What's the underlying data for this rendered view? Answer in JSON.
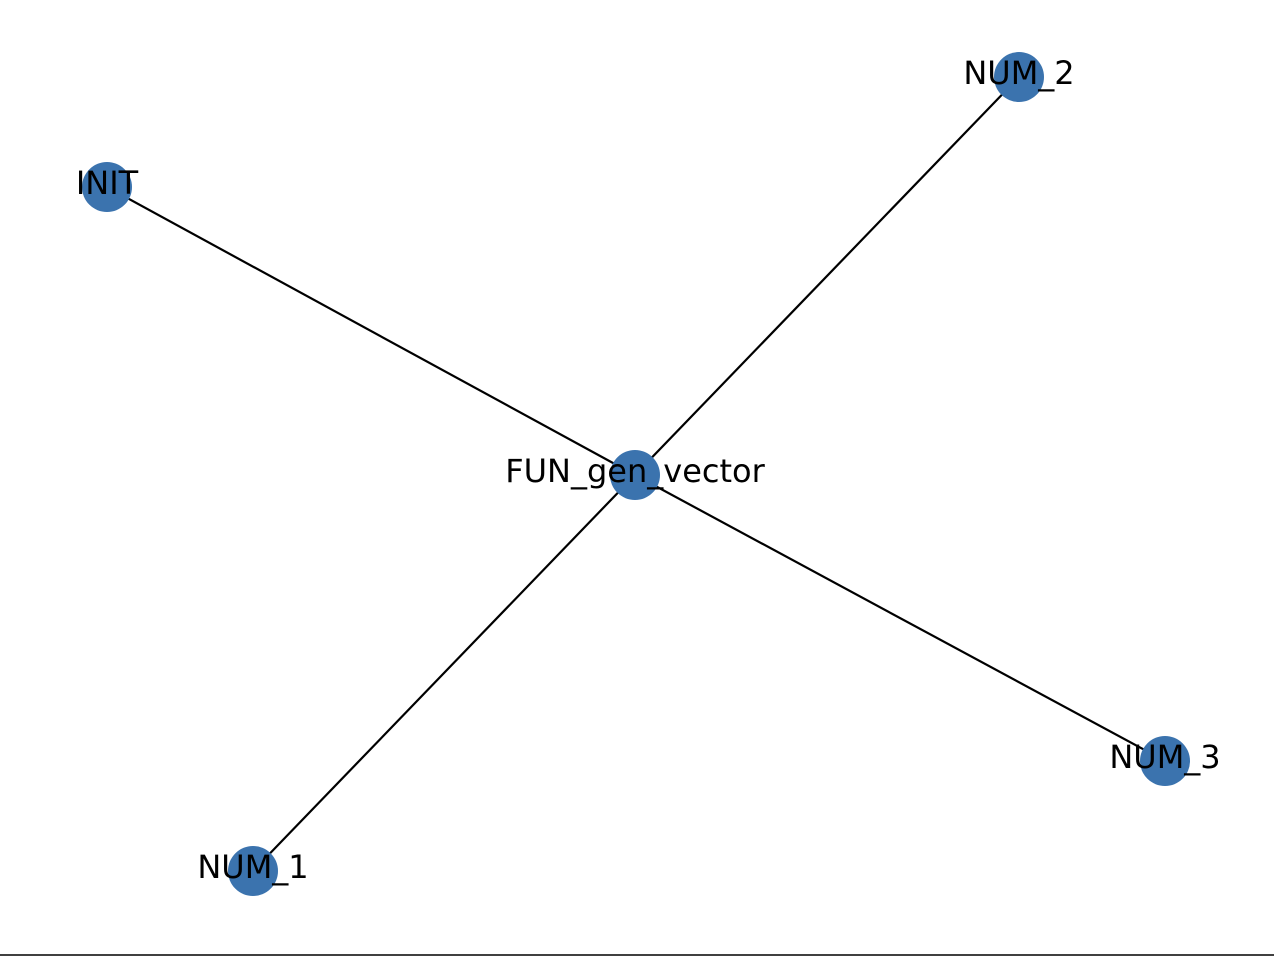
{
  "graph": {
    "node_color": "#3b73ae",
    "edge_color": "#000000",
    "nodes": [
      {
        "id": "FUN_gen_vector",
        "label": "FUN_gen_vector"
      },
      {
        "id": "INIT",
        "label": "INIT"
      },
      {
        "id": "NUM_1",
        "label": "NUM_1"
      },
      {
        "id": "NUM_2",
        "label": "NUM_2"
      },
      {
        "id": "NUM_3",
        "label": "NUM_3"
      }
    ],
    "edges": [
      {
        "source": "INIT",
        "target": "FUN_gen_vector"
      },
      {
        "source": "FUN_gen_vector",
        "target": "NUM_2"
      },
      {
        "source": "FUN_gen_vector",
        "target": "NUM_1"
      },
      {
        "source": "FUN_gen_vector",
        "target": "NUM_3"
      }
    ]
  }
}
